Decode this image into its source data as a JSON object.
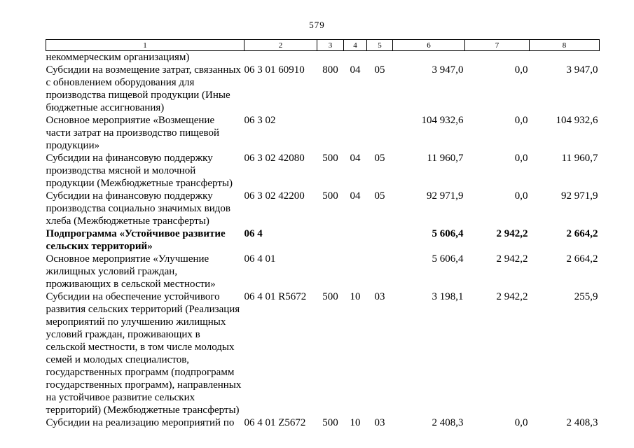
{
  "page": {
    "number": "579"
  },
  "table": {
    "header": [
      "1",
      "2",
      "3",
      "4",
      "5",
      "6",
      "7",
      "8"
    ],
    "rows": [
      {
        "bold": false,
        "cells": [
          "некоммерческим организациям)",
          "",
          "",
          "",
          "",
          "",
          "",
          ""
        ]
      },
      {
        "bold": false,
        "cells": [
          "Субсидии на возмещение затрат, связанных с обновлением оборудования для производства пищевой продукции (Иные бюджетные ассигнования)",
          "06 3 01 60910",
          "800",
          "04",
          "05",
          "3 947,0",
          "0,0",
          "3 947,0"
        ]
      },
      {
        "bold": false,
        "cells": [
          "Основное мероприятие «Возмещение части затрат на производство пищевой продукции»",
          "06 3 02",
          "",
          "",
          "",
          "104 932,6",
          "0,0",
          "104 932,6"
        ]
      },
      {
        "bold": false,
        "cells": [
          "Субсидии на финансовую поддержку производства мясной и молочной продукции (Межбюджетные трансферты)",
          "06 3 02 42080",
          "500",
          "04",
          "05",
          "11 960,7",
          "0,0",
          "11 960,7"
        ]
      },
      {
        "bold": false,
        "cells": [
          "Субсидии на финансовую поддержку производства социально значимых видов хлеба (Межбюджетные трансферты)",
          "06 3 02 42200",
          "500",
          "04",
          "05",
          "92 971,9",
          "0,0",
          "92 971,9"
        ]
      },
      {
        "bold": true,
        "cells": [
          "Подпрограмма «Устойчивое развитие сельских территорий»",
          "06 4",
          "",
          "",
          "",
          "5 606,4",
          "2 942,2",
          "2 664,2"
        ]
      },
      {
        "bold": false,
        "cells": [
          "Основное мероприятие «Улучшение жилищных условий граждан, проживающих в сельской местности»",
          "06 4 01",
          "",
          "",
          "",
          "5 606,4",
          "2 942,2",
          "2 664,2"
        ]
      },
      {
        "bold": false,
        "cells": [
          "Субсидии на обеспечение устойчивого развития сельских территорий (Реализация мероприятий по улучшению жилищных условий граждан, проживающих в сельской местности, в том числе молодых семей и молодых специалистов, государственных программ (подпрограмм государственных программ), направленных на устойчивое развитие сельских территорий) (Межбюджетные трансферты)",
          "06 4 01 R5672",
          "500",
          "10",
          "03",
          "3 198,1",
          "2 942,2",
          "255,9"
        ]
      },
      {
        "bold": false,
        "cells": [
          "Субсидии на реализацию мероприятий по",
          "06 4 01 Z5672",
          "500",
          "10",
          "03",
          "2 408,3",
          "0,0",
          "2 408,3"
        ]
      }
    ]
  }
}
